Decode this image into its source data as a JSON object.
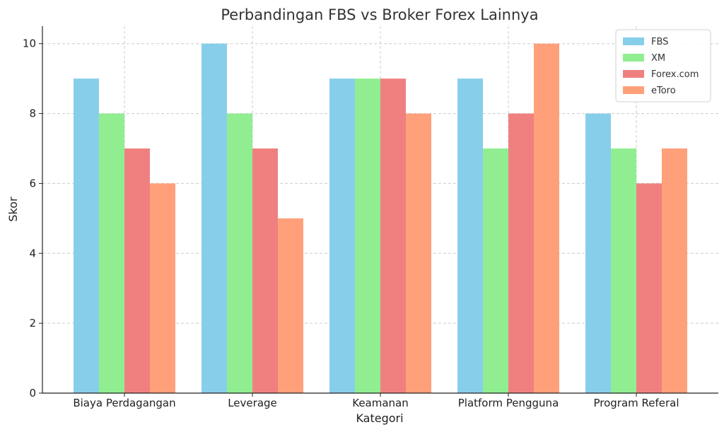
{
  "chart_data": {
    "type": "bar",
    "title": "Perbandingan FBS vs Broker Forex Lainnya",
    "xlabel": "Kategori",
    "ylabel": "Skor",
    "categories": [
      "Biaya Perdagangan",
      "Leverage",
      "Keamanan",
      "Platform Pengguna",
      "Program Referal"
    ],
    "series": [
      {
        "name": "FBS",
        "color": "#87CEEB",
        "values": [
          9,
          10,
          9,
          9,
          8
        ]
      },
      {
        "name": "XM",
        "color": "#90EE90",
        "values": [
          8,
          8,
          9,
          7,
          7
        ]
      },
      {
        "name": "Forex.com",
        "color": "#F08080",
        "values": [
          7,
          7,
          9,
          8,
          6
        ]
      },
      {
        "name": "eToro",
        "color": "#FFA07A",
        "values": [
          6,
          5,
          8,
          10,
          7
        ]
      }
    ],
    "ylim": [
      0,
      10.5
    ],
    "yticks": [
      0,
      2,
      4,
      6,
      8,
      10
    ],
    "grid": true,
    "legend_position": "top-right"
  }
}
